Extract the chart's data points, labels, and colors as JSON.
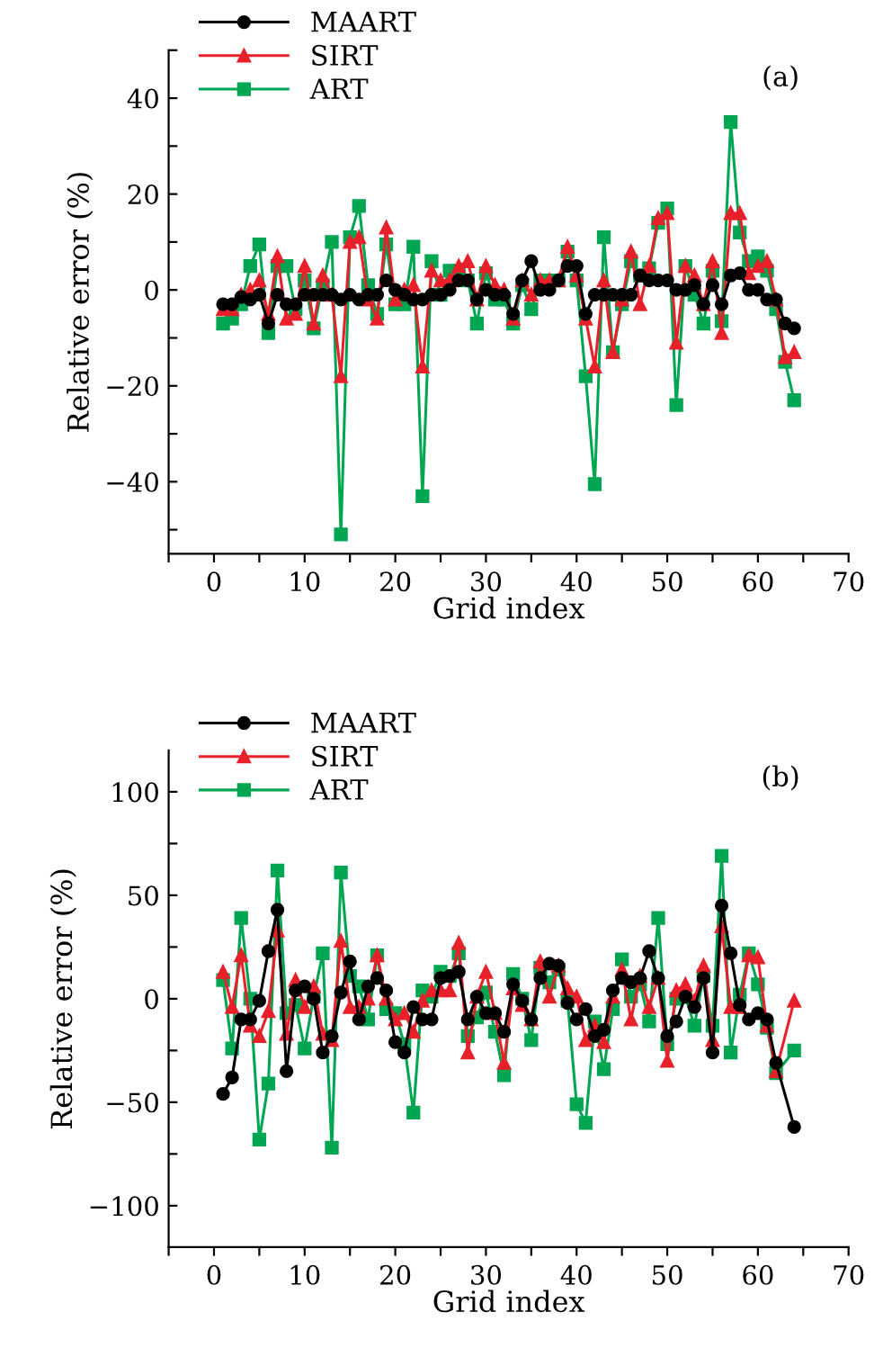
{
  "chart_data": [
    {
      "type": "line",
      "xlabel": "Grid index",
      "ylabel": "Relative error (%)",
      "annotations": [
        "(a)"
      ],
      "legend": "top left",
      "grid": false,
      "xlim": [
        -5,
        70
      ],
      "ylim": [
        -55,
        50
      ],
      "xticks": [
        {
          "value": -5,
          "label": null
        },
        0,
        {
          "value": 5,
          "label": null
        },
        10,
        {
          "value": 15,
          "label": null
        },
        20,
        {
          "value": 25,
          "label": null
        },
        30,
        {
          "value": 35,
          "label": null
        },
        40,
        {
          "value": 45,
          "label": null
        },
        50,
        {
          "value": 55,
          "label": null
        },
        60,
        {
          "value": 65,
          "label": null
        },
        70
      ],
      "yticks": [
        {
          "value": -50,
          "label": null
        },
        -40,
        {
          "value": -30,
          "label": null
        },
        -20,
        {
          "value": -10,
          "label": null
        },
        0,
        {
          "value": 10,
          "label": null
        },
        20,
        {
          "value": 30,
          "label": null
        },
        40,
        {
          "value": 50,
          "label": null
        }
      ],
      "x": [
        1,
        2,
        3,
        4,
        5,
        6,
        7,
        8,
        9,
        10,
        11,
        12,
        13,
        14,
        15,
        16,
        17,
        18,
        19,
        20,
        21,
        22,
        23,
        24,
        25,
        26,
        27,
        28,
        29,
        30,
        31,
        32,
        33,
        34,
        35,
        36,
        37,
        38,
        39,
        40,
        41,
        42,
        43,
        44,
        45,
        46,
        47,
        48,
        49,
        50,
        51,
        52,
        53,
        54,
        55,
        56,
        57,
        58,
        59,
        60,
        61,
        62,
        63,
        64
      ],
      "series": [
        {
          "name": "MAART",
          "color": "#000000",
          "marker": "circle",
          "values": [
            -3,
            -3,
            -1.5,
            -2,
            -1,
            -7,
            -1,
            -3,
            -3,
            -1,
            -1,
            -1,
            -1,
            -2,
            -1,
            -2,
            -1,
            -1,
            2,
            0,
            -1,
            -2,
            -2,
            -1,
            -1,
            0,
            2,
            2,
            -2,
            0,
            -1,
            -1,
            -5,
            2,
            6,
            0,
            0,
            2,
            5,
            5,
            -5,
            -1,
            -1,
            -1,
            -1,
            -1,
            3,
            2,
            2,
            2,
            0,
            0,
            1,
            -3,
            1,
            -3,
            3,
            3.5,
            0,
            0,
            -2,
            -2,
            -7,
            -8
          ]
        },
        {
          "name": "SIRT",
          "color": "#e8202a",
          "marker": "triangle",
          "values": [
            -4,
            -4,
            -1,
            0,
            2,
            -5,
            7,
            -6,
            -5,
            5,
            -7,
            3,
            -1,
            -18,
            10,
            11,
            -2,
            -6,
            13,
            -2,
            0,
            1,
            -16,
            4,
            2,
            2,
            5,
            6,
            -2,
            5,
            1,
            0,
            -6,
            2,
            -1,
            2,
            2,
            2,
            9,
            3,
            -6,
            -16,
            2,
            -13,
            -2,
            8,
            -3,
            5,
            15,
            16,
            -11,
            5,
            3,
            -3,
            6,
            -9,
            16,
            16,
            3.5,
            5,
            6,
            -2,
            -14,
            -13
          ]
        },
        {
          "name": "ART",
          "color": "#00a651",
          "marker": "square",
          "values": [
            -7,
            -6,
            -3,
            5,
            9.5,
            -9,
            5,
            5,
            -4,
            2,
            -8,
            1,
            10,
            -51,
            11,
            17.5,
            1,
            -5,
            9.5,
            -3,
            -3,
            9,
            -43,
            6,
            -1,
            4,
            4,
            2,
            -7,
            3.5,
            -2,
            -2,
            -7,
            1,
            -4,
            2,
            2,
            2,
            8,
            2,
            -18,
            -40.5,
            11,
            -13,
            -3,
            6,
            3,
            4.5,
            14,
            17,
            -24,
            5,
            -1,
            -7,
            4,
            -6.5,
            35,
            12,
            6,
            7,
            4,
            -4,
            -15,
            -23
          ]
        }
      ]
    },
    {
      "type": "line",
      "xlabel": "Grid index",
      "ylabel": "Relative error (%)",
      "annotations": [
        "(b)"
      ],
      "legend": "top left",
      "grid": false,
      "xlim": [
        -5,
        70
      ],
      "ylim": [
        -120,
        120
      ],
      "xticks": [
        {
          "value": -5,
          "label": null
        },
        0,
        {
          "value": 5,
          "label": null
        },
        10,
        {
          "value": 15,
          "label": null
        },
        20,
        {
          "value": 25,
          "label": null
        },
        30,
        {
          "value": 35,
          "label": null
        },
        40,
        {
          "value": 45,
          "label": null
        },
        50,
        {
          "value": 55,
          "label": null
        },
        60,
        {
          "value": 65,
          "label": null
        },
        70
      ],
      "yticks": [
        {
          "value": -100,
          "label": "−100"
        },
        {
          "value": -75,
          "label": null
        },
        {
          "value": -50,
          "label": "−50"
        },
        {
          "value": -25,
          "label": null
        },
        0,
        {
          "value": 25,
          "label": null
        },
        50,
        {
          "value": 75,
          "label": null
        },
        100
      ],
      "x": [
        1,
        2,
        3,
        4,
        5,
        6,
        7,
        8,
        9,
        10,
        11,
        12,
        13,
        14,
        15,
        16,
        17,
        18,
        19,
        20,
        21,
        22,
        23,
        24,
        25,
        26,
        27,
        28,
        29,
        30,
        31,
        32,
        33,
        34,
        35,
        36,
        37,
        38,
        39,
        40,
        41,
        42,
        43,
        44,
        45,
        46,
        47,
        48,
        49,
        50,
        51,
        52,
        53,
        54,
        55,
        56,
        57,
        58,
        59,
        60,
        61,
        62,
        64
      ],
      "series": [
        {
          "name": "MAART",
          "color": "#000000",
          "marker": "circle",
          "values": [
            -46,
            -38,
            -10,
            -10,
            -1,
            23,
            43,
            -35,
            4,
            6,
            0,
            -26,
            -18,
            3,
            18,
            -10,
            6,
            10,
            4,
            -21,
            -26,
            -4,
            -10,
            -10,
            10,
            11,
            13,
            -10,
            1,
            -7,
            -7,
            -16,
            7,
            -1,
            -10,
            10,
            17,
            16,
            -2,
            -10,
            -5,
            -18,
            -15,
            4,
            10,
            8,
            10,
            23,
            10,
            -18,
            -11,
            1,
            -4,
            10,
            -26,
            45,
            22,
            -3,
            -10,
            -7,
            -10,
            -31,
            -62
          ]
        },
        {
          "name": "SIRT",
          "color": "#e8202a",
          "marker": "triangle",
          "values": [
            13,
            -4,
            21,
            -13,
            -18,
            -6,
            33,
            -17,
            9,
            -4,
            6,
            -17,
            -20,
            28,
            -4,
            -4,
            0,
            21,
            0,
            -10,
            -7,
            -16,
            -1,
            4,
            4,
            4,
            27,
            -26,
            1,
            13,
            -7,
            -31,
            5,
            -3,
            -10,
            18,
            1,
            16,
            5,
            1,
            -20,
            -13,
            -21,
            1,
            14,
            -10,
            11,
            -4,
            10,
            -30,
            4,
            7,
            -1,
            16,
            -20,
            35,
            -4,
            -4,
            21,
            20,
            -13,
            -35,
            -1
          ]
        },
        {
          "name": "ART",
          "color": "#00a651",
          "marker": "square",
          "values": [
            9,
            -24,
            39,
            0,
            -68,
            -41,
            62,
            -7,
            -3,
            -24,
            1,
            22,
            -72,
            61,
            11,
            6,
            -10,
            21,
            -5,
            -7,
            -22,
            -55,
            4,
            1,
            13,
            11,
            22,
            -18,
            -9,
            3,
            -16,
            -37,
            12,
            0,
            -20,
            15,
            8,
            14,
            -1,
            -51,
            -60,
            -11,
            -34,
            -5,
            19,
            1,
            7,
            -11,
            39,
            -22,
            0,
            1,
            -13,
            11,
            -13,
            69,
            -26,
            2,
            22,
            7,
            -14,
            -36,
            -25
          ]
        }
      ]
    }
  ]
}
